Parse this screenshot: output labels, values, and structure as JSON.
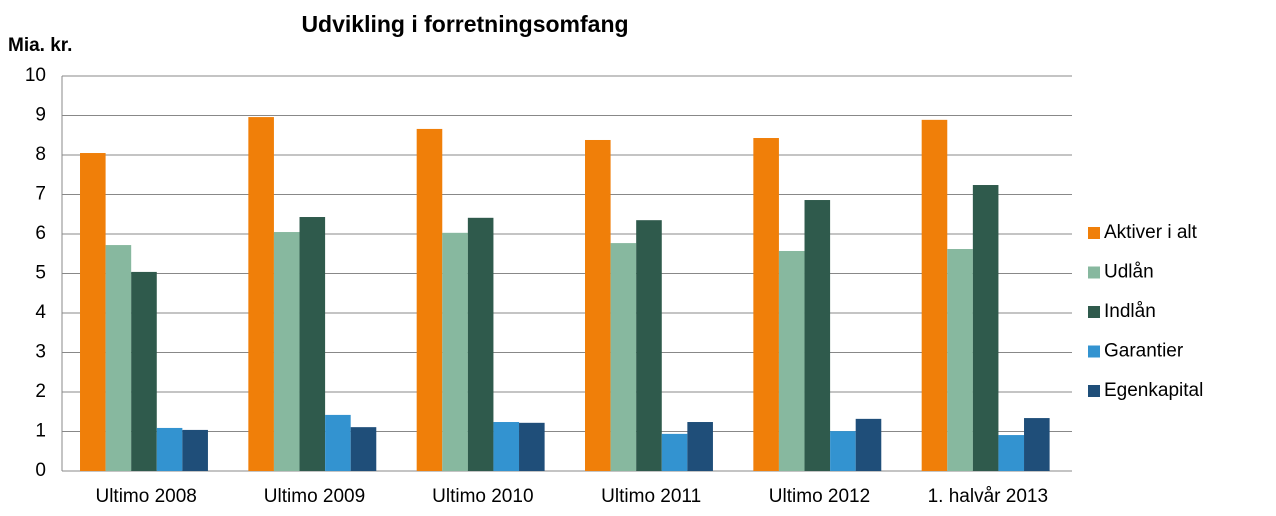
{
  "chart_data": {
    "type": "bar",
    "title": "Udvikling i forretningsomfang",
    "y_label": "Mia. kr.",
    "categories": [
      "Ultimo 2008",
      "Ultimo 2009",
      "Ultimo 2010",
      "Ultimo 2011",
      "Ultimo 2012",
      "1. halvår 2013"
    ],
    "series": [
      {
        "name": "Aktiver i alt",
        "color": "#f07f09",
        "values": [
          8.05,
          8.96,
          8.66,
          8.38,
          8.43,
          8.89
        ]
      },
      {
        "name": "Udlån",
        "color": "#87b89f",
        "values": [
          5.72,
          6.05,
          6.03,
          5.77,
          5.57,
          5.62
        ]
      },
      {
        "name": "Indlån",
        "color": "#2f5a4c",
        "values": [
          5.04,
          6.43,
          6.41,
          6.35,
          6.86,
          7.24
        ]
      },
      {
        "name": "Garantier",
        "color": "#3393d0",
        "values": [
          1.09,
          1.42,
          1.24,
          0.94,
          1.01,
          0.91
        ]
      },
      {
        "name": "Egenkapital",
        "color": "#1f4e79",
        "values": [
          1.04,
          1.11,
          1.22,
          1.24,
          1.32,
          1.34
        ]
      }
    ],
    "ylim": [
      0,
      10
    ],
    "yticks": [
      0,
      1,
      2,
      3,
      4,
      5,
      6,
      7,
      8,
      9,
      10
    ],
    "grid": true,
    "legend": "right"
  }
}
